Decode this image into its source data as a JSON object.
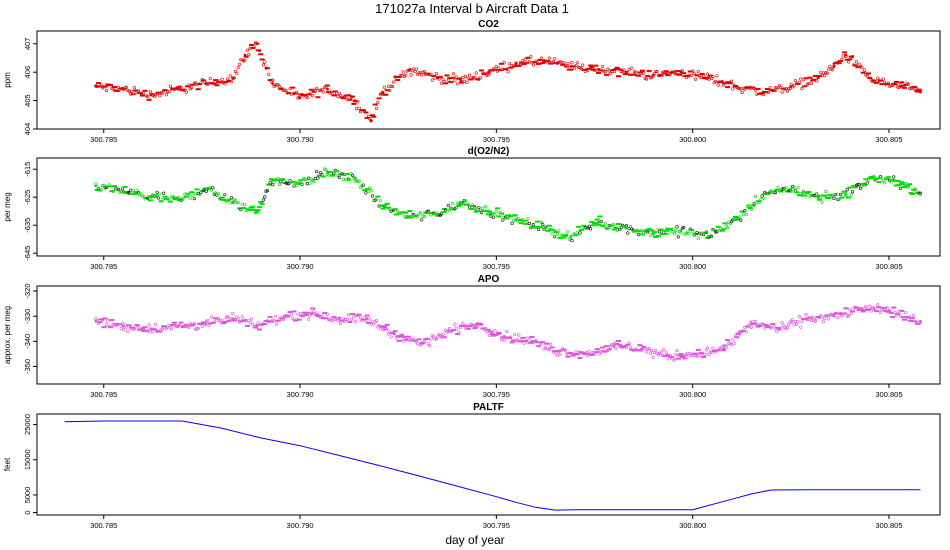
{
  "figure": {
    "title": "171027a   Interval b Aircraft Data 1",
    "xlabel": "day of year"
  },
  "chart_data": [
    {
      "type": "scatter",
      "title": "CO2",
      "ylabel": "ppm",
      "color": "#e00000",
      "xlim": [
        300.7833,
        300.8063
      ],
      "ylim": [
        404,
        407.45
      ],
      "xticks": [
        300.785,
        300.79,
        300.795,
        300.8,
        300.805
      ],
      "xtick_labels": [
        "300.785",
        "300.790",
        "300.795",
        "300.800",
        "300.805"
      ],
      "yticks": [
        404,
        405,
        406,
        407
      ],
      "ytick_labels": [
        "404",
        "405",
        "406",
        "407"
      ],
      "grid": false,
      "series": [
        {
          "x": [
            300.7848,
            300.7855,
            300.7862,
            300.7869,
            300.7876,
            300.7883,
            300.7886,
            300.7889,
            300.7893,
            300.79,
            300.7907,
            300.7914,
            300.7918,
            300.7921,
            300.7928,
            300.7935,
            300.7941,
            300.7948,
            300.7955,
            300.7962,
            300.7969,
            300.7976,
            300.7983,
            300.799,
            300.7997,
            300.8004,
            300.8011,
            300.8018,
            300.8025,
            300.8032,
            300.8036,
            300.8039,
            300.8046,
            300.8053,
            300.8058
          ],
          "y": [
            405.5,
            405.4,
            405.2,
            405.4,
            405.6,
            405.8,
            406.6,
            407.0,
            405.6,
            405.1,
            405.4,
            405.0,
            404.3,
            405.3,
            406.1,
            405.8,
            405.7,
            406.0,
            406.3,
            406.4,
            406.2,
            406.1,
            406.0,
            405.9,
            406.0,
            405.8,
            405.5,
            405.3,
            405.5,
            405.8,
            406.2,
            406.6,
            405.7,
            405.5,
            405.3
          ]
        }
      ]
    },
    {
      "type": "scatter",
      "title": "d(O2/N2)",
      "ylabel": "per meg",
      "color": "#00dd00",
      "xlim": [
        300.7833,
        300.8063
      ],
      "ylim": [
        -646,
        -611
      ],
      "xticks": [
        300.785,
        300.79,
        300.795,
        300.8,
        300.805
      ],
      "xtick_labels": [
        "300.785",
        "300.790",
        "300.795",
        "300.800",
        "300.805"
      ],
      "yticks": [
        -645,
        -635,
        -625,
        -615
      ],
      "ytick_labels": [
        "-645",
        "-635",
        "-625",
        "-615"
      ],
      "grid": false,
      "series": [
        {
          "x": [
            300.7848,
            300.7855,
            300.7862,
            300.7869,
            300.7876,
            300.7883,
            300.7889,
            300.7893,
            300.79,
            300.7907,
            300.7914,
            300.7921,
            300.7928,
            300.7935,
            300.7941,
            300.7948,
            300.7955,
            300.7962,
            300.7969,
            300.7976,
            300.7983,
            300.799,
            300.7997,
            300.8004,
            300.8011,
            300.8018,
            300.8025,
            300.8032,
            300.8039,
            300.8046,
            300.8053,
            300.8058
          ],
          "y": [
            -621,
            -623,
            -625,
            -626,
            -622,
            -627,
            -630,
            -619,
            -620,
            -616,
            -618,
            -628,
            -632,
            -631,
            -627,
            -630,
            -633,
            -636,
            -639,
            -634,
            -636,
            -638,
            -637,
            -639,
            -633,
            -624,
            -622,
            -625,
            -624,
            -618,
            -620,
            -624
          ]
        }
      ]
    },
    {
      "type": "scatter",
      "title": "APO",
      "ylabel": "approx. per meg",
      "color": "#dd55dd",
      "xlim": [
        300.7833,
        300.8063
      ],
      "ylim": [
        -357,
        -318
      ],
      "xticks": [
        300.785,
        300.79,
        300.795,
        300.8,
        300.805
      ],
      "xtick_labels": [
        "300.785",
        "300.790",
        "300.795",
        "300.800",
        "300.805"
      ],
      "yticks": [
        -350,
        -340,
        -330,
        -320
      ],
      "ytick_labels": [
        "-350",
        "-340",
        "-330",
        "-320"
      ],
      "grid": false,
      "series": [
        {
          "x": [
            300.7848,
            300.7855,
            300.7862,
            300.7869,
            300.7876,
            300.7883,
            300.7889,
            300.7896,
            300.7903,
            300.791,
            300.7917,
            300.7924,
            300.7931,
            300.7938,
            300.7945,
            300.7952,
            300.7959,
            300.7966,
            300.7973,
            300.798,
            300.7987,
            300.7994,
            300.8001,
            300.8008,
            300.8015,
            300.8022,
            300.8029,
            300.8036,
            300.8043,
            300.805,
            300.8058
          ],
          "y": [
            -332,
            -334,
            -335,
            -334,
            -333,
            -331,
            -334,
            -330,
            -329,
            -331,
            -331,
            -337,
            -341,
            -336,
            -333,
            -338,
            -340,
            -344,
            -345,
            -342,
            -343,
            -346,
            -345,
            -343,
            -333,
            -335,
            -331,
            -330,
            -327,
            -328,
            -332
          ]
        }
      ]
    },
    {
      "type": "line",
      "title": "PALTF",
      "ylabel": "feet",
      "color": "#0000ee",
      "xlim": [
        300.7833,
        300.8063
      ],
      "ylim": [
        -700,
        28000
      ],
      "xticks": [
        300.785,
        300.79,
        300.795,
        300.8,
        300.805
      ],
      "xtick_labels": [
        "300.785",
        "300.790",
        "300.795",
        "300.800",
        "300.805"
      ],
      "yticks": [
        0,
        5000,
        15000,
        25000
      ],
      "ytick_labels": [
        "0",
        "5000",
        "15000",
        "25000"
      ],
      "grid": false,
      "series": [
        {
          "x": [
            300.784,
            300.785,
            300.786,
            300.787,
            300.788,
            300.789,
            300.79,
            300.791,
            300.792,
            300.793,
            300.794,
            300.795,
            300.7955,
            300.796,
            300.7965,
            300.797,
            300.798,
            300.799,
            300.8,
            300.801,
            300.8015,
            300.802,
            300.803,
            300.804,
            300.805,
            300.8058
          ],
          "y": [
            25800,
            26000,
            26000,
            26000,
            24000,
            21200,
            19000,
            16200,
            13400,
            10500,
            7500,
            4500,
            2900,
            1500,
            700,
            800,
            800,
            800,
            800,
            3800,
            5300,
            6400,
            6500,
            6500,
            6500,
            6500
          ]
        }
      ]
    }
  ]
}
